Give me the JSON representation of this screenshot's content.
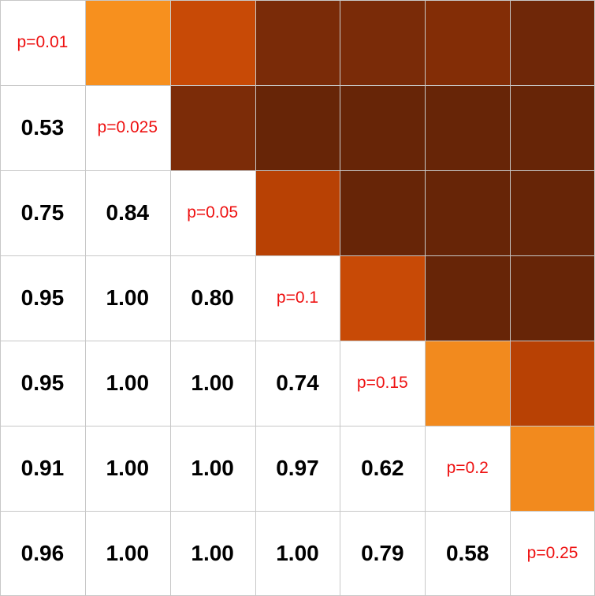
{
  "chart_data": {
    "type": "heatmap",
    "title": "",
    "row_labels": [
      "p=0.01",
      "p=0.025",
      "p=0.05",
      "p=0.1",
      "p=0.15",
      "p=0.2",
      "p=0.25"
    ],
    "col_labels": [
      "p=0.01",
      "p=0.025",
      "p=0.05",
      "p=0.1",
      "p=0.15",
      "p=0.2",
      "p=0.25"
    ],
    "diagonal_labels": [
      "p=0.01",
      "p=0.025",
      "p=0.05",
      "p=0.1",
      "p=0.15",
      "p=0.2",
      "p=0.25"
    ],
    "lower_triangle_values": [
      [],
      [
        "0.53"
      ],
      [
        "0.75",
        "0.84"
      ],
      [
        "0.95",
        "1.00",
        "0.80"
      ],
      [
        "0.95",
        "1.00",
        "1.00",
        "0.74"
      ],
      [
        "0.91",
        "1.00",
        "1.00",
        "0.97",
        "0.62"
      ],
      [
        "0.96",
        "1.00",
        "1.00",
        "1.00",
        "0.79",
        "0.58"
      ]
    ],
    "upper_triangle_colors": [
      [
        null,
        "#f7901e",
        "#c84a06",
        "#7a2b08",
        "#7a2b08",
        "#832d06",
        "#6f2708"
      ],
      [
        null,
        null,
        "#7c2c08",
        "#672507",
        "#672507",
        "#672507",
        "#672507"
      ],
      [
        null,
        null,
        null,
        "#b84104",
        "#672507",
        "#672507",
        "#672507"
      ],
      [
        null,
        null,
        null,
        null,
        "#c84a06",
        "#672507",
        "#672507"
      ],
      [
        null,
        null,
        null,
        null,
        null,
        "#f28a1e",
        "#b84104"
      ],
      [
        null,
        null,
        null,
        null,
        null,
        null,
        "#f28a1e"
      ],
      [
        null,
        null,
        null,
        null,
        null,
        null,
        null
      ]
    ],
    "colors": {
      "diagonal_text": "#ee1111",
      "value_text": "#000000",
      "grid": "#c8c8c8",
      "background": "#ffffff"
    }
  }
}
